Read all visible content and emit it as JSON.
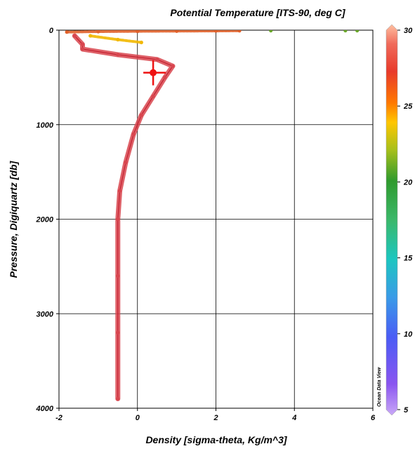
{
  "chart_data": {
    "type": "scatter",
    "title": "Potential Temperature [ITS-90, deg C]",
    "xlabel": "Density [sigma-theta, Kg/m^3]",
    "ylabel": "Pressure, Digiquartz [db]",
    "xlim": [
      -2,
      6
    ],
    "ylim": [
      4000,
      0
    ],
    "y_inverted": true,
    "x_ticks": [
      "-2",
      "0",
      "2",
      "4",
      "6"
    ],
    "y_ticks": [
      "0",
      "1000",
      "2000",
      "3000",
      "4000"
    ],
    "grid": true,
    "colorbar": {
      "label": "Potential Temperature [ITS-90, deg C]",
      "range": [
        5,
        30
      ],
      "ticks": [
        "5",
        "10",
        "15",
        "20",
        "25",
        "30"
      ],
      "colors": [
        "#9a55f0",
        "#4a5cf5",
        "#1cc6c0",
        "#2f9a2d",
        "#ffc600",
        "#ff7800",
        "#e83a2b",
        "#ffb090"
      ]
    },
    "series": [
      {
        "color": "#d8454e",
        "points": [
          {
            "x": -1.6,
            "y": 60,
            "t": 27
          },
          {
            "x": -1.4,
            "y": 150,
            "t": 27
          },
          {
            "x": -1.4,
            "y": 200,
            "t": 27
          },
          {
            "x": -0.5,
            "y": 260,
            "t": 27
          },
          {
            "x": 0.5,
            "y": 310,
            "t": 27
          },
          {
            "x": 0.9,
            "y": 380,
            "t": 27
          },
          {
            "x": 0.7,
            "y": 500,
            "t": 26
          },
          {
            "x": 0.4,
            "y": 700,
            "t": 26
          },
          {
            "x": 0.1,
            "y": 900,
            "t": 26
          },
          {
            "x": -0.1,
            "y": 1100,
            "t": 26
          },
          {
            "x": -0.3,
            "y": 1400,
            "t": 26
          },
          {
            "x": -0.45,
            "y": 1700,
            "t": 26
          },
          {
            "x": -0.5,
            "y": 2000,
            "t": 26
          },
          {
            "x": -0.5,
            "y": 2600,
            "t": 26
          },
          {
            "x": -0.5,
            "y": 3200,
            "t": 26
          },
          {
            "x": -0.5,
            "y": 3900,
            "t": 26
          }
        ]
      },
      {
        "color": "#e0602a",
        "points": [
          {
            "x": -1.8,
            "y": 20,
            "t": 25
          },
          {
            "x": -1.0,
            "y": 15,
            "t": 25
          },
          {
            "x": 0.0,
            "y": 12,
            "t": 24
          },
          {
            "x": 1.0,
            "y": 10,
            "t": 24
          },
          {
            "x": 2.0,
            "y": 8,
            "t": 23
          },
          {
            "x": 2.6,
            "y": 6,
            "t": 23
          }
        ]
      },
      {
        "color": "#f2b800",
        "points": [
          {
            "x": -1.2,
            "y": 60,
            "t": 22
          },
          {
            "x": -0.5,
            "y": 100,
            "t": 22
          },
          {
            "x": 0.1,
            "y": 130,
            "t": 21
          }
        ]
      },
      {
        "color": "#6aa82a",
        "points": [
          {
            "x": 3.4,
            "y": 5,
            "t": 19
          },
          {
            "x": 5.3,
            "y": 5,
            "t": 18
          },
          {
            "x": 5.6,
            "y": 5,
            "t": 18
          }
        ]
      }
    ],
    "marker": {
      "x": 0.4,
      "y": 450
    }
  },
  "watermark": "Ocean Data View"
}
